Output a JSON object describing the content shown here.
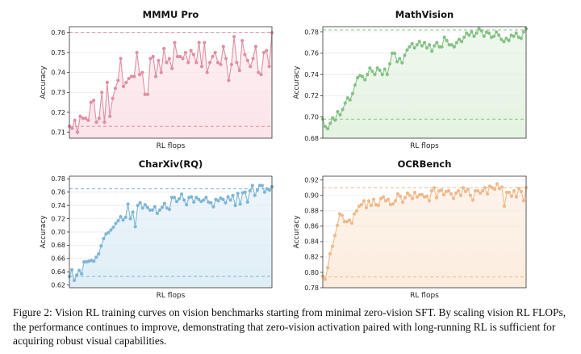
{
  "caption": "Figure 2: Vision RL training curves on vision benchmarks starting from minimal zero-vision SFT. By scaling vision RL FLOPs, the performance continues to improve, demonstrating that zero-vision activation paired with long-running RL is sufficient for acquiring robust visual capabilities.",
  "chart_data": [
    {
      "type": "line",
      "title": "MMMU Pro",
      "xlabel": "RL flops",
      "ylabel": "Accuracy",
      "color": "#e08ea3",
      "fill": "#fbe3e8",
      "ylim": [
        0.707,
        0.763
      ],
      "yticks": [
        0.71,
        0.72,
        0.73,
        0.74,
        0.75,
        0.76
      ],
      "ref_lines": [
        0.76,
        0.713
      ],
      "series": [
        {
          "values": [
            0.713,
            0.712,
            0.716,
            0.71,
            0.718,
            0.717,
            0.717,
            0.716,
            0.725,
            0.726,
            0.715,
            0.717,
            0.73,
            0.715,
            0.735,
            0.718,
            0.727,
            0.732,
            0.736,
            0.747,
            0.733,
            0.735,
            0.737,
            0.738,
            0.738,
            0.75,
            0.739,
            0.74,
            0.729,
            0.729,
            0.747,
            0.748,
            0.738,
            0.746,
            0.74,
            0.752,
            0.745,
            0.747,
            0.742,
            0.755,
            0.748,
            0.748,
            0.747,
            0.75,
            0.745,
            0.751,
            0.749,
            0.745,
            0.755,
            0.743,
            0.755,
            0.74,
            0.745,
            0.748,
            0.75,
            0.745,
            0.744,
            0.753,
            0.747,
            0.736,
            0.744,
            0.758,
            0.745,
            0.741,
            0.756,
            0.749,
            0.746,
            0.743,
            0.747,
            0.753,
            0.74,
            0.739,
            0.75,
            0.751,
            0.743,
            0.76
          ]
        }
      ]
    },
    {
      "type": "line",
      "title": "MathVision",
      "xlabel": "RL flops",
      "ylabel": "Accuracy",
      "color": "#85c285",
      "fill": "#e3f2e0",
      "ylim": [
        0.68,
        0.785
      ],
      "yticks": [
        0.68,
        0.7,
        0.72,
        0.74,
        0.76,
        0.78
      ],
      "ref_lines": [
        0.782,
        0.698
      ],
      "series": [
        {
          "values": [
            0.698,
            0.691,
            0.689,
            0.694,
            0.699,
            0.697,
            0.705,
            0.702,
            0.707,
            0.713,
            0.718,
            0.716,
            0.722,
            0.73,
            0.737,
            0.739,
            0.738,
            0.735,
            0.74,
            0.746,
            0.743,
            0.74,
            0.746,
            0.744,
            0.74,
            0.745,
            0.74,
            0.75,
            0.76,
            0.76,
            0.752,
            0.755,
            0.751,
            0.758,
            0.763,
            0.766,
            0.769,
            0.765,
            0.768,
            0.771,
            0.767,
            0.77,
            0.765,
            0.768,
            0.762,
            0.767,
            0.77,
            0.766,
            0.766,
            0.775,
            0.772,
            0.768,
            0.768,
            0.766,
            0.77,
            0.773,
            0.771,
            0.775,
            0.779,
            0.777,
            0.78,
            0.776,
            0.779,
            0.783,
            0.781,
            0.776,
            0.78,
            0.779,
            0.775,
            0.776,
            0.78,
            0.777,
            0.773,
            0.771,
            0.774,
            0.772,
            0.777,
            0.776,
            0.779,
            0.775,
            0.774,
            0.78,
            0.783
          ]
        }
      ]
    },
    {
      "type": "line",
      "title": "CharXiv(RQ)",
      "xlabel": "RL flops",
      "ylabel": "Accuracy",
      "color": "#7fb6d6",
      "fill": "#deedf6",
      "ylim": [
        0.616,
        0.784
      ],
      "yticks": [
        0.62,
        0.64,
        0.66,
        0.68,
        0.7,
        0.72,
        0.74,
        0.76,
        0.78
      ],
      "ref_lines": [
        0.765,
        0.633
      ],
      "series": [
        {
          "values": [
            0.633,
            0.643,
            0.627,
            0.635,
            0.642,
            0.637,
            0.655,
            0.655,
            0.656,
            0.657,
            0.656,
            0.662,
            0.667,
            0.679,
            0.69,
            0.697,
            0.699,
            0.703,
            0.707,
            0.713,
            0.717,
            0.723,
            0.718,
            0.722,
            0.742,
            0.72,
            0.73,
            0.708,
            0.74,
            0.744,
            0.736,
            0.741,
            0.737,
            0.733,
            0.733,
            0.738,
            0.728,
            0.733,
            0.737,
            0.743,
            0.736,
            0.734,
            0.752,
            0.752,
            0.746,
            0.75,
            0.757,
            0.748,
            0.741,
            0.752,
            0.753,
            0.745,
            0.752,
            0.749,
            0.746,
            0.748,
            0.752,
            0.745,
            0.744,
            0.738,
            0.749,
            0.747,
            0.751,
            0.749,
            0.744,
            0.753,
            0.748,
            0.755,
            0.74,
            0.758,
            0.742,
            0.759,
            0.76,
            0.745,
            0.762,
            0.77,
            0.755,
            0.763,
            0.77,
            0.77,
            0.76,
            0.765,
            0.763,
            0.768
          ]
        }
      ]
    },
    {
      "type": "line",
      "title": "OCRBench",
      "xlabel": "RL flops",
      "ylabel": "Accuracy",
      "color": "#f0b98a",
      "fill": "#fcebdc",
      "ylim": [
        0.78,
        0.925
      ],
      "yticks": [
        0.78,
        0.8,
        0.82,
        0.84,
        0.86,
        0.88,
        0.9,
        0.92
      ],
      "ref_lines": [
        0.91,
        0.794
      ],
      "series": [
        {
          "values": [
            0.795,
            0.791,
            0.806,
            0.824,
            0.834,
            0.848,
            0.861,
            0.876,
            0.874,
            0.866,
            0.866,
            0.868,
            0.864,
            0.876,
            0.88,
            0.886,
            0.888,
            0.893,
            0.884,
            0.893,
            0.887,
            0.895,
            0.888,
            0.887,
            0.896,
            0.898,
            0.893,
            0.895,
            0.888,
            0.889,
            0.893,
            0.902,
            0.899,
            0.891,
            0.897,
            0.903,
            0.9,
            0.896,
            0.904,
            0.898,
            0.901,
            0.901,
            0.898,
            0.899,
            0.893,
            0.906,
            0.91,
            0.897,
            0.906,
            0.907,
            0.901,
            0.905,
            0.906,
            0.902,
            0.896,
            0.903,
            0.906,
            0.9,
            0.91,
            0.905,
            0.908,
            0.9,
            0.894,
            0.906,
            0.906,
            0.903,
            0.906,
            0.91,
            0.902,
            0.912,
            0.91,
            0.908,
            0.915,
            0.909,
            0.911,
            0.886,
            0.904,
            0.904,
            0.899,
            0.906,
            0.898,
            0.909,
            0.905,
            0.893,
            0.91
          ]
        }
      ]
    }
  ]
}
